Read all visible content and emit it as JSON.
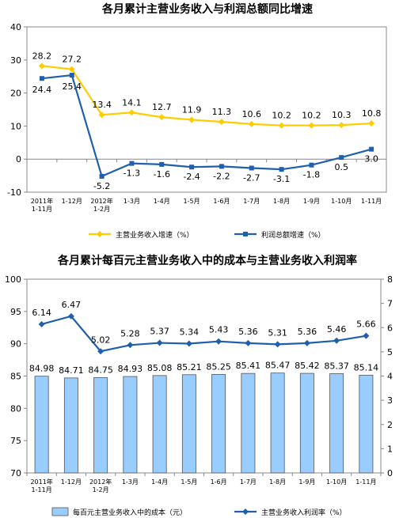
{
  "chart_data": [
    {
      "type": "line",
      "title": "各月累计主营业务收入与利润总额同比增速",
      "categories": [
        "2011年 1-11月",
        "1-12月",
        "2012年 1-2月",
        "1-3月",
        "1-4月",
        "1-5月",
        "1-6月",
        "1-7月",
        "1-8月",
        "1-9月",
        "1-10月",
        "1-11月"
      ],
      "ylim": [
        -10,
        40
      ],
      "yticks": [
        "-10",
        "0",
        "10",
        "20",
        "30",
        "40"
      ],
      "legend": "bottom",
      "series": [
        {
          "name": "主营业务收入增速（%）",
          "color": "#FFCC00",
          "marker": "diamond",
          "values": [
            28.2,
            27.2,
            13.4,
            14.1,
            12.7,
            11.9,
            11.3,
            10.6,
            10.2,
            10.2,
            10.3,
            10.8
          ],
          "labels": [
            "28.2",
            "27.2",
            "13.4",
            "14.1",
            "12.7",
            "11.9",
            "11.3",
            "10.6",
            "10.2",
            "10.2",
            "10.3",
            "10.8"
          ]
        },
        {
          "name": "利润总额增速（%）",
          "color": "#1F5FAD",
          "marker": "square",
          "values": [
            24.4,
            25.4,
            -5.2,
            -1.3,
            -1.6,
            -2.4,
            -2.2,
            -2.7,
            -3.1,
            -1.8,
            0.5,
            3.0
          ],
          "labels": [
            "24.4",
            "25.4",
            "-5.2",
            "-1.3",
            "-1.6",
            "-2.4",
            "-2.2",
            "-2.7",
            "-3.1",
            "-1.8",
            "0.5",
            "3.0"
          ]
        }
      ]
    },
    {
      "type": "bar",
      "title": "各月累计每百元主营业务收入中的成本与主营业务收入利润率",
      "categories": [
        "2011年 1-11月",
        "1-12月",
        "2012年 1-2月",
        "1-3月",
        "1-4月",
        "1-5月",
        "1-6月",
        "1-7月",
        "1-8月",
        "1-9月",
        "1-10月",
        "1-11月"
      ],
      "ylim": [
        70,
        100
      ],
      "yticks": [
        "70",
        "75",
        "80",
        "85",
        "90",
        "95",
        "100"
      ],
      "y2lim": [
        0,
        8
      ],
      "y2ticks": [
        "0",
        "1",
        "2",
        "3",
        "4",
        "5",
        "6",
        "7",
        "8"
      ],
      "legend": "bottom",
      "series": [
        {
          "name": "每百元主营业务收入中的成本（元）",
          "type": "bar",
          "axis": "left",
          "color": "#99CCFF",
          "values": [
            84.98,
            84.71,
            84.75,
            84.93,
            85.08,
            85.21,
            85.25,
            85.41,
            85.47,
            85.42,
            85.37,
            85.14
          ],
          "labels": [
            "84.98",
            "84.71",
            "84.75",
            "84.93",
            "85.08",
            "85.21",
            "85.25",
            "85.41",
            "85.47",
            "85.42",
            "85.37",
            "85.14"
          ]
        },
        {
          "name": "主营业务收入利润率（%）",
          "type": "line",
          "axis": "right",
          "color": "#1F5FAD",
          "marker": "diamond",
          "values": [
            6.14,
            6.47,
            5.02,
            5.28,
            5.37,
            5.34,
            5.43,
            5.36,
            5.31,
            5.36,
            5.46,
            5.66
          ],
          "labels": [
            "6.14",
            "6.47",
            "5.02",
            "5.28",
            "5.37",
            "5.34",
            "5.43",
            "5.36",
            "5.31",
            "5.36",
            "5.46",
            "5.66"
          ]
        }
      ]
    }
  ]
}
